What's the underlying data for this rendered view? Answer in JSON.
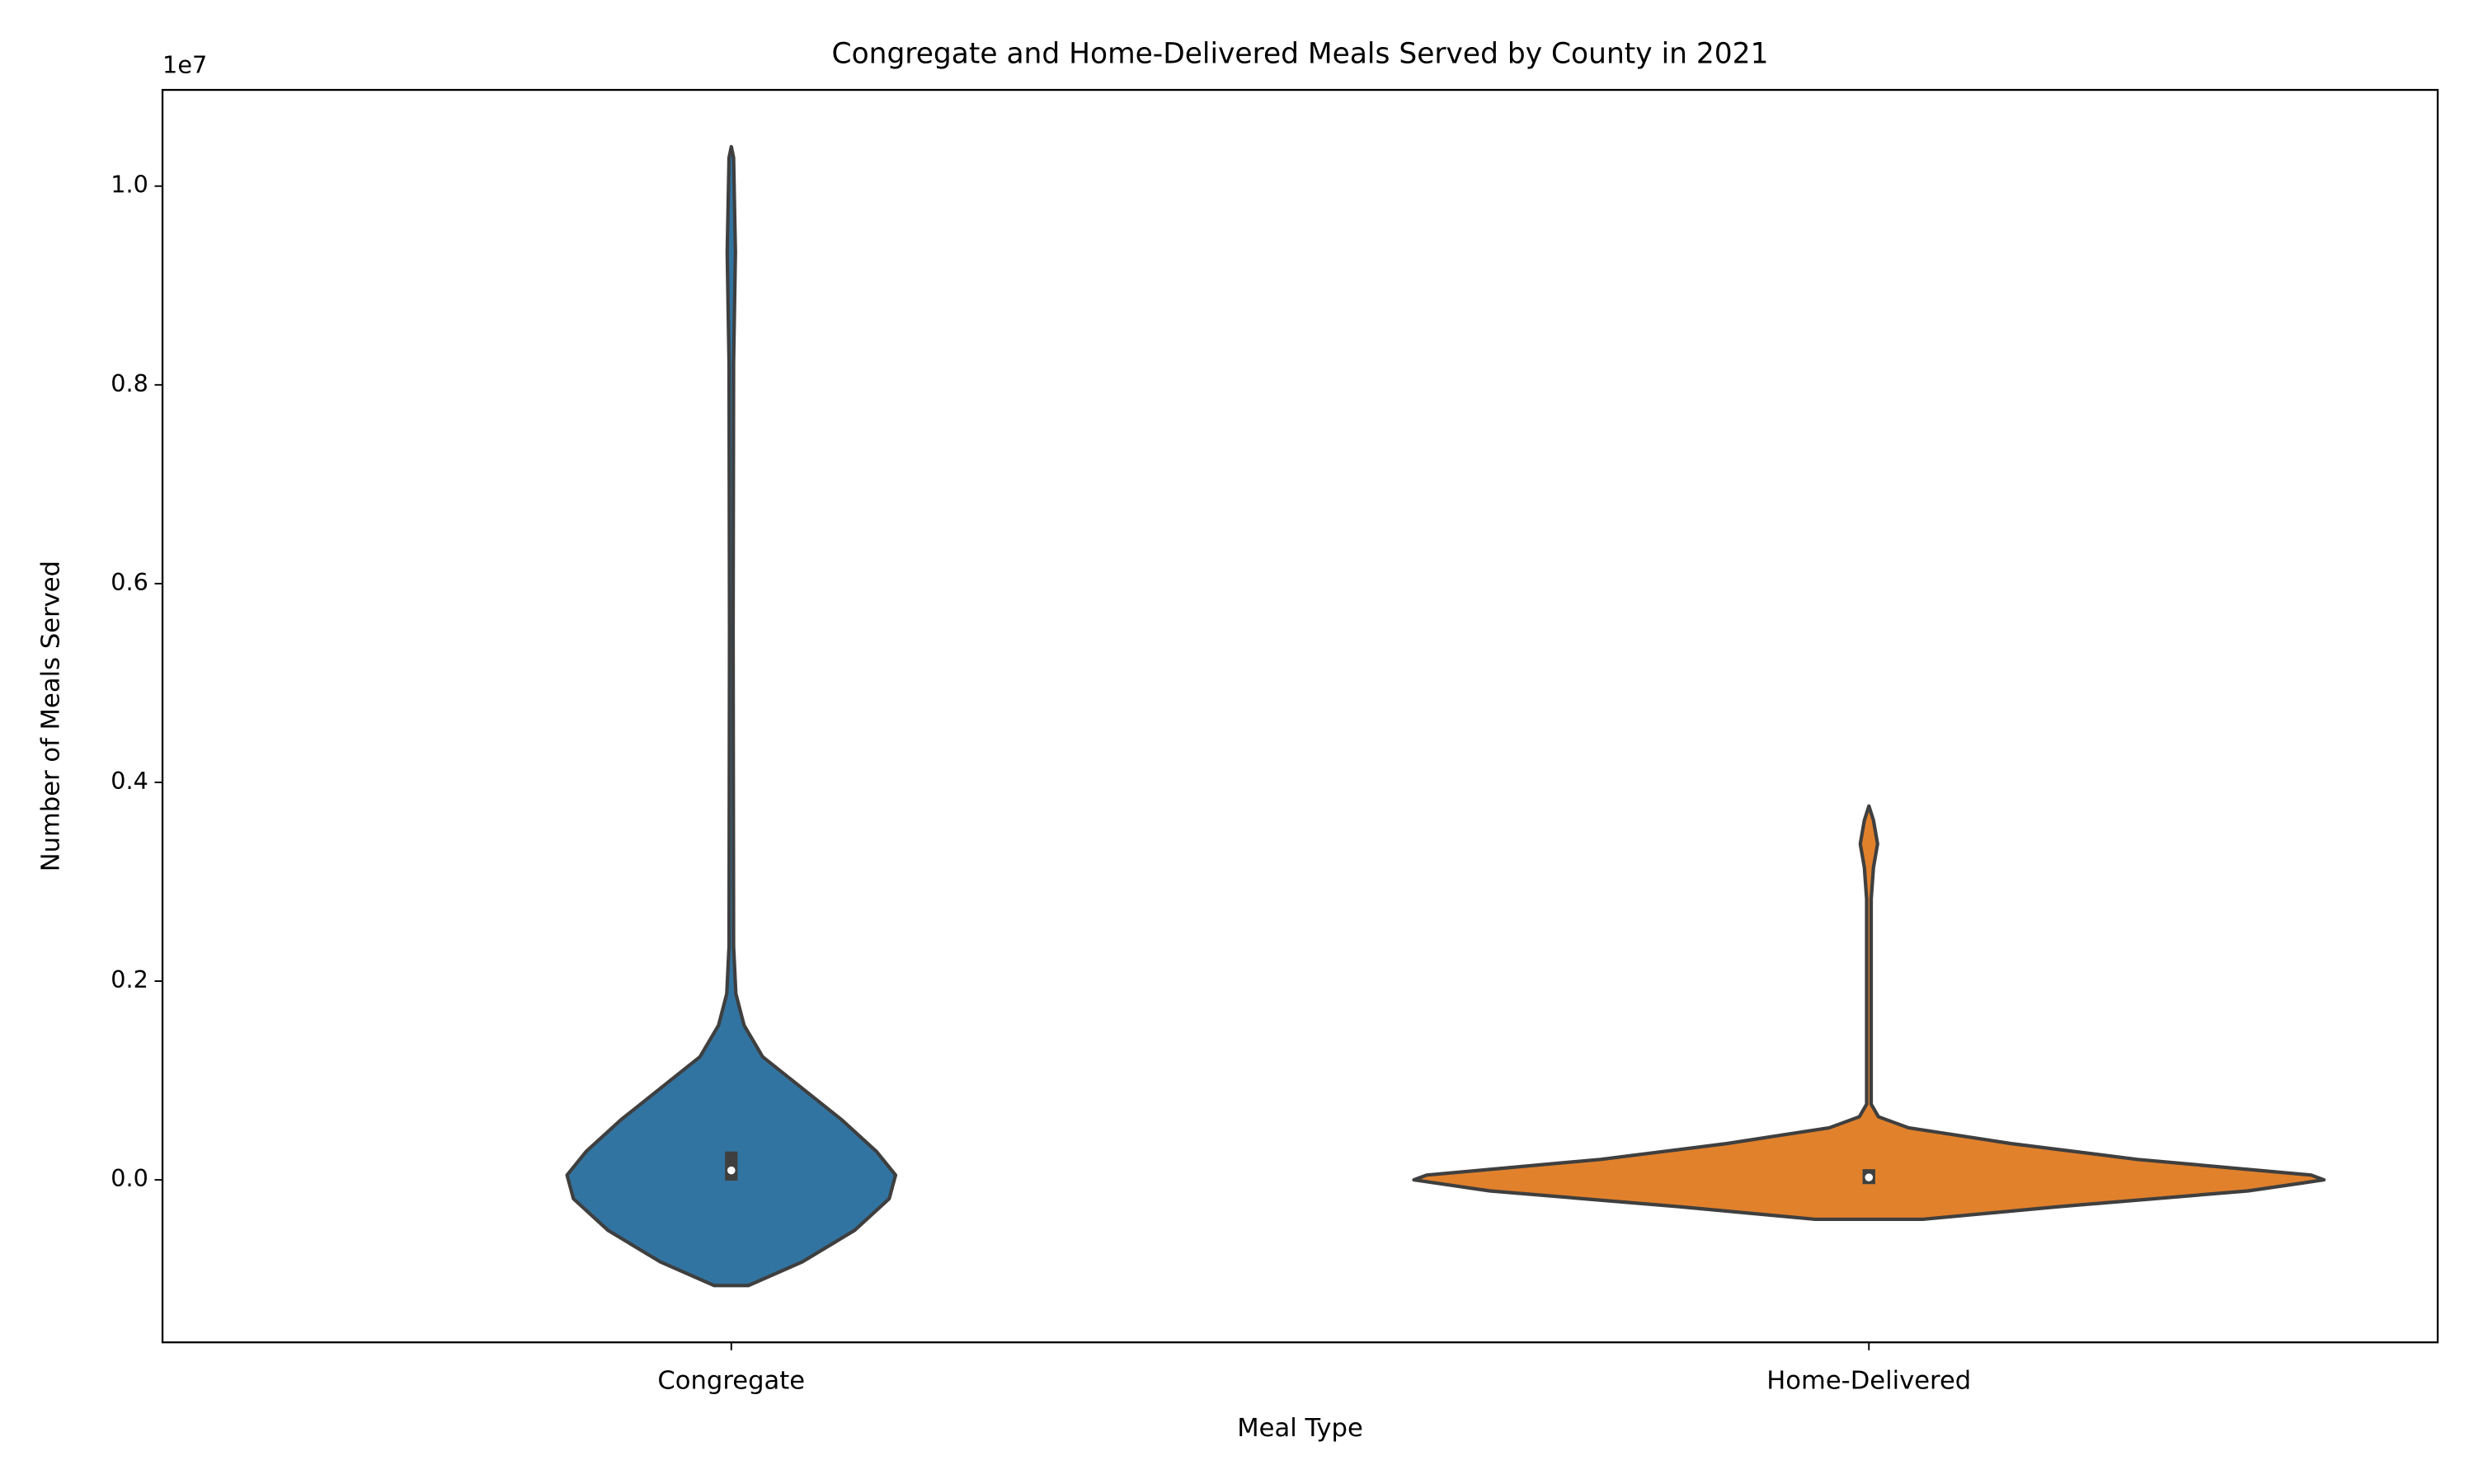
{
  "chart_data": {
    "type": "violin",
    "title": "Congregate and Home-Delivered Meals Served by County in 2021",
    "x_label": "Meal Type",
    "y_label": "Number of Meals Served",
    "y_offset_label": "1e7",
    "categories": [
      "Congregate",
      "Home-Delivered"
    ],
    "ylim": [
      -1635000,
      10968000
    ],
    "yticks": [
      {
        "value": 0,
        "label": "0.0"
      },
      {
        "value": 2000000,
        "label": "0.2"
      },
      {
        "value": 4000000,
        "label": "0.4"
      },
      {
        "value": 6000000,
        "label": "0.6"
      },
      {
        "value": 8000000,
        "label": "0.8"
      },
      {
        "value": 10000000,
        "label": "1.0"
      }
    ],
    "line_color": "#3f3f3f",
    "violins": [
      {
        "color": "#3274a1",
        "y": [
          10397000,
          10286000,
          9333000,
          8222000,
          5524000,
          2349000,
          1873000,
          1556000,
          1238000,
          921000,
          603000,
          286000,
          48000,
          -190000,
          -508000,
          -825000,
          -1063000
        ],
        "width": [
          0,
          0.005,
          0.009,
          0.005,
          0.004,
          0.005,
          0.01,
          0.028,
          0.069,
          0.156,
          0.243,
          0.319,
          0.361,
          0.347,
          0.271,
          0.156,
          0.038
        ],
        "q1": 40000,
        "median": 95000,
        "q3": 238000
      },
      {
        "color": "#e1812c",
        "y": [
          3762000,
          3619000,
          3381000,
          3143000,
          2825000,
          762000,
          635000,
          524000,
          365000,
          206000,
          48000,
          0,
          -111000,
          -270000,
          -397000
        ],
        "width": [
          0,
          0.01,
          0.019,
          0.01,
          0.005,
          0.005,
          0.021,
          0.087,
          0.313,
          0.59,
          0.972,
          1.0,
          0.833,
          0.417,
          0.118
        ],
        "q1": 5000,
        "median": 25000,
        "q3": 60000
      }
    ]
  }
}
